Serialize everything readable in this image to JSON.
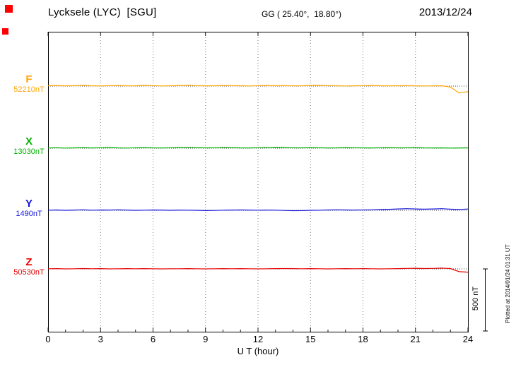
{
  "header": {
    "station": "Lycksele (LYC)  [SGU]",
    "coords_label": "GG ( 25.40°,  18.80°)",
    "date": "2013/12/24"
  },
  "axis": {
    "x_label": "U T (hour)",
    "x_ticks": [
      0,
      3,
      6,
      9,
      12,
      15,
      18,
      21,
      24
    ],
    "x_min": 0,
    "x_max": 24
  },
  "scale_bar": {
    "label": "500 nT",
    "span_nT": 500
  },
  "footer_note": "Plotted at 2014/01/24 01:31 UT",
  "markers": {
    "color": "#ff0000"
  },
  "chart_data": {
    "type": "line",
    "title": "Lycksele (LYC) [SGU] magnetogram 2013/12/24",
    "xlabel": "U T (hour)",
    "x_unit": "hour",
    "x_range": [
      0,
      24
    ],
    "x_ticks": [
      0,
      3,
      6,
      9,
      12,
      15,
      18,
      21,
      24
    ],
    "grid": "vertical-dotted",
    "grid_color": "#777777",
    "sample_step_hours": 0.5,
    "scale_bar_nT": 500,
    "series": [
      {
        "name": "F",
        "baseline_nT": 52210,
        "baseline_label": "52210nT",
        "color": "#ffa500",
        "delta_nT": [
          3,
          5,
          2,
          4,
          6,
          3,
          1,
          4,
          5,
          2,
          3,
          6,
          4,
          1,
          3,
          5,
          6,
          4,
          2,
          3,
          5,
          4,
          3,
          1,
          4,
          5,
          3,
          4,
          2,
          3,
          5,
          6,
          4,
          3,
          1,
          2,
          4,
          5,
          3,
          2,
          3,
          4,
          2,
          1,
          2,
          3,
          -8,
          -55,
          -45
        ]
      },
      {
        "name": "X",
        "baseline_nT": 13030,
        "baseline_label": "13030nT",
        "color": "#00b400",
        "delta_nT": [
          2,
          4,
          1,
          3,
          5,
          2,
          4,
          6,
          3,
          1,
          4,
          5,
          3,
          2,
          4,
          6,
          7,
          5,
          3,
          4,
          6,
          5,
          3,
          2,
          4,
          6,
          8,
          6,
          4,
          3,
          5,
          4,
          2,
          3,
          5,
          4,
          3,
          2,
          4,
          5,
          3,
          4,
          5,
          3,
          2,
          3,
          1,
          2,
          3
        ]
      },
      {
        "name": "Y",
        "baseline_nT": 1490,
        "baseline_label": "1490nT",
        "color": "#1414dc",
        "delta_nT": [
          1,
          3,
          0,
          2,
          4,
          1,
          3,
          2,
          4,
          2,
          0,
          1,
          3,
          2,
          0,
          2,
          1,
          0,
          -2,
          -1,
          1,
          2,
          3,
          2,
          1,
          2,
          1,
          -1,
          -3,
          -2,
          0,
          1,
          3,
          4,
          3,
          2,
          3,
          4,
          6,
          8,
          11,
          13,
          11,
          9,
          11,
          13,
          9,
          7,
          10
        ]
      },
      {
        "name": "Z",
        "baseline_nT": 50530,
        "baseline_label": "50530nT",
        "color": "#e60000",
        "delta_nT": [
          1,
          2,
          0,
          1,
          3,
          1,
          2,
          0,
          1,
          2,
          1,
          2,
          1,
          0,
          1,
          1,
          2,
          1,
          0,
          1,
          2,
          1,
          2,
          1,
          0,
          1,
          2,
          3,
          2,
          1,
          2,
          1,
          0,
          1,
          2,
          1,
          2,
          1,
          0,
          1,
          2,
          4,
          5,
          3,
          4,
          6,
          3,
          -22,
          -26
        ]
      }
    ]
  }
}
